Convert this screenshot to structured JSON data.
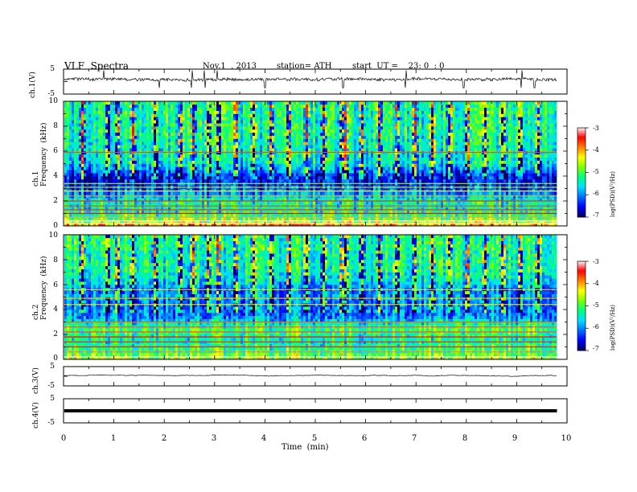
{
  "header": {
    "title": "VLF  Spectra",
    "date": "Nov.1  , 2013",
    "station": "station= ATH",
    "start": "start  UT =    23: 0  : 0"
  },
  "panels": {
    "ch1_wave": {
      "label": "ch.1(V)",
      "ticks": [
        "5",
        "-5"
      ]
    },
    "ch1_spec": {
      "label": "ch.1\nFrequency  (kHz)",
      "ticks": [
        "10",
        "8",
        "6",
        "4",
        "2",
        "0"
      ]
    },
    "ch2_spec": {
      "label": "ch.2\nFrequency  (kHz)",
      "ticks": [
        "10",
        "8",
        "6",
        "4",
        "2",
        "0"
      ]
    },
    "ch3_wave": {
      "label": "ch.3(V)",
      "ticks": [
        "5",
        "-5"
      ]
    },
    "ch4_wave": {
      "label": "ch.4(V)",
      "ticks": [
        "5",
        "-5"
      ]
    }
  },
  "colorbar": {
    "label": "log(PSD)(V²/Hz)",
    "ticks": [
      "-3",
      "-4",
      "-5",
      "-6",
      "-7"
    ]
  },
  "colors": {
    "scale": [
      "#000060",
      "#0000ff",
      "#0070ff",
      "#00e0ff",
      "#00ff80",
      "#80ff00",
      "#ffff00",
      "#ff8000",
      "#ff0000",
      "#ffffff"
    ]
  },
  "chart_data": {
    "type": "heatmap",
    "title": "VLF  Spectra",
    "xlabel": "Time  (min)",
    "x_ticks": [
      "0",
      "1",
      "2",
      "3",
      "4",
      "5",
      "6",
      "7",
      "8",
      "9",
      "10"
    ],
    "xlim": [
      0,
      10
    ],
    "data_end_min": 9.8,
    "spectrograms": [
      {
        "channel": "ch.1",
        "ylabel": "Frequency  (kHz)",
        "ylim": [
          0,
          10
        ],
        "zlim": [
          -7,
          -3
        ],
        "zlabel": "log(PSD)(V²/Hz)",
        "profile_khz": [
          0,
          0.5,
          1,
          1.5,
          2,
          2.5,
          3,
          3.5,
          4,
          4.5,
          5,
          5.5,
          6,
          6.5,
          7,
          7.5,
          8,
          8.5,
          9,
          9.5,
          10
        ],
        "profile_logpsd": [
          -3.8,
          -4.8,
          -5.3,
          -5.5,
          -5.4,
          -5.9,
          -6.3,
          -6.5,
          -6.6,
          -6.0,
          -5.6,
          -5.5,
          -5.5,
          -5.4,
          -5.4,
          -5.3,
          -5.3,
          -5.4,
          -5.3,
          -5.3,
          -5.3
        ],
        "line_freqs_khz": [
          0.2,
          0.4,
          0.7,
          1.0,
          1.3,
          1.6,
          2.0,
          2.4,
          2.8,
          3.1,
          3.4,
          5.9
        ],
        "bursts_min": [
          0.35,
          0.85,
          1.05,
          1.35,
          1.8,
          2.3,
          2.55,
          2.85,
          3.05,
          3.4,
          3.75,
          4.1,
          4.45,
          4.8,
          5.15,
          5.5,
          5.58,
          5.9,
          6.25,
          6.6,
          6.95,
          7.3,
          7.65,
          8.0,
          8.35,
          8.7,
          9.05,
          9.4
        ]
      },
      {
        "channel": "ch.2",
        "ylabel": "Frequency  (kHz)",
        "ylim": [
          0,
          10
        ],
        "zlim": [
          -7,
          -3
        ],
        "zlabel": "log(PSD)(V²/Hz)",
        "profile_khz": [
          0,
          0.5,
          1,
          1.5,
          2,
          2.5,
          3,
          3.5,
          4,
          4.5,
          5,
          5.5,
          6,
          6.5,
          7,
          7.5,
          8,
          8.5,
          9,
          9.5,
          10
        ],
        "profile_logpsd": [
          -4.5,
          -5.0,
          -5.2,
          -5.4,
          -5.2,
          -5.0,
          -5.6,
          -6.1,
          -6.0,
          -6.1,
          -5.9,
          -6.1,
          -5.8,
          -5.5,
          -5.4,
          -5.3,
          -5.3,
          -5.4,
          -5.2,
          -5.3,
          -5.3
        ],
        "line_freqs_khz": [
          0.2,
          0.6,
          1.0,
          1.4,
          1.8,
          2.2,
          2.6,
          3.0,
          4.4,
          4.9,
          5.6
        ],
        "bursts_min": [
          0.35,
          0.85,
          1.05,
          1.35,
          1.8,
          2.3,
          2.55,
          2.85,
          3.05,
          3.4,
          3.75,
          4.1,
          4.45,
          4.8,
          5.15,
          5.5,
          5.58,
          5.9,
          6.25,
          6.6,
          6.95,
          7.3,
          7.65,
          8.0,
          8.35,
          8.7,
          9.05,
          9.4
        ]
      }
    ],
    "waveforms": [
      {
        "channel": "ch.1",
        "ylabel": "ch.1(V)",
        "ylim": [
          -5,
          5
        ],
        "mean_v": 1.0,
        "noise_v": 0.6,
        "spikes_min": [
          0.8,
          1.9,
          2.55,
          2.8,
          3.05,
          4.0,
          5.55,
          6.8,
          7.95,
          9.1,
          9.35
        ]
      },
      {
        "channel": "ch.3",
        "ylabel": "ch.3(V)",
        "ylim": [
          -5,
          5
        ],
        "mean_v": 0.4,
        "noise_v": 0.05,
        "spikes_min": []
      },
      {
        "channel": "ch.4",
        "ylabel": "ch.4(V)",
        "ylim": [
          -5,
          5
        ],
        "mean_v": 0.0,
        "noise_v": 0.0,
        "thick": true,
        "spikes_min": []
      }
    ]
  }
}
